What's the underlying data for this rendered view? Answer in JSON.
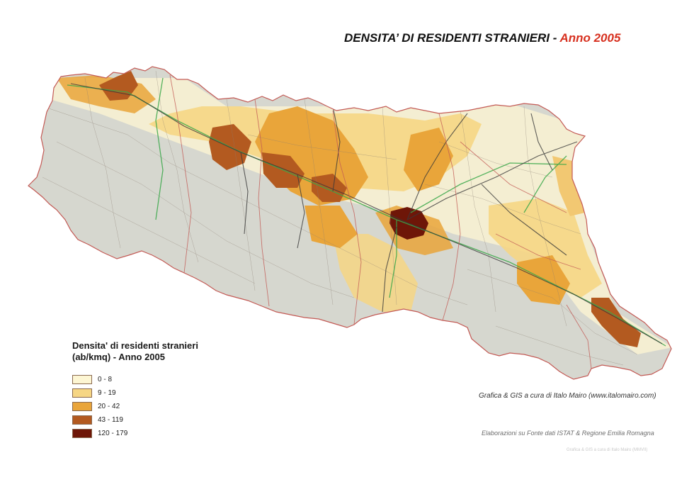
{
  "title": {
    "main": "DENSITA’ DI RESIDENTI STRANIERI - ",
    "year": "Anno 2005",
    "year_color": "#d7301f"
  },
  "legend": {
    "title": "Densita' di residenti stranieri\n(ab/kmq) - Anno 2005",
    "classes": [
      {
        "label": "0 - 8",
        "color": "#fdf6d3"
      },
      {
        "label": "9 - 19",
        "color": "#f6d684"
      },
      {
        "label": "20 - 42",
        "color": "#e9a53a"
      },
      {
        "label": "43 - 119",
        "color": "#b35a20"
      },
      {
        "label": "120 - 179",
        "color": "#6e1608"
      }
    ]
  },
  "credits": {
    "graphics": "Grafica & GIS a cura di Italo Mairo (www.italomairo.com)",
    "source": "Elaborazioni su Fonte dati ISTAT & Regione Emilia Romagna",
    "watermark": "Grafica & GIS a cura di Italo Mairo (MMVII)"
  },
  "map": {
    "region": "Emilia Romagna",
    "colors": {
      "relief": "#d6d7cf",
      "boundary": "#c35a55",
      "road": "#3a3a3a",
      "railway": "#3aa84a"
    }
  }
}
